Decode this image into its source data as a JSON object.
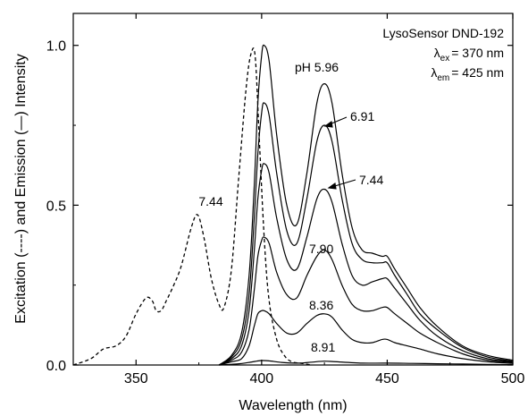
{
  "chart_data": {
    "type": "line",
    "xlabel": "Wavelength (nm)",
    "ylabel": "Excitation (----) and Emission (—) Intensity",
    "xlim": [
      325,
      500
    ],
    "ylim": [
      0,
      1.1
    ],
    "x_ticks": [
      "350",
      "400",
      "450",
      "500"
    ],
    "y_ticks": [
      "0.0",
      "0.5",
      "1.0"
    ],
    "legend": {
      "title": "LysoSensor DND-192",
      "ex_label": "ex",
      "ex_value": "= 370 nm",
      "em_label": "em",
      "em_value": "= 425 nm",
      "lambda": "λ"
    },
    "annotations": {
      "pH_prefix": "pH",
      "excitation": "7.44",
      "em_596": "5.96",
      "em_691": "6.91",
      "em_744": "7.44",
      "em_790": "7.90",
      "em_836": "8.36",
      "em_891": "8.91"
    },
    "excitation_series": {
      "name": "Excitation pH 7.44",
      "style": "dashed",
      "x": [
        325,
        332,
        337,
        342,
        346,
        350,
        354,
        356.5,
        358,
        360,
        362,
        365,
        368,
        372,
        374.5,
        377,
        380,
        383,
        385,
        388,
        391,
        394,
        396,
        397.5,
        399,
        401,
        403,
        406,
        409,
        412,
        416,
        420
      ],
      "y": [
        0.0,
        0.02,
        0.05,
        0.06,
        0.09,
        0.16,
        0.21,
        0.2,
        0.17,
        0.17,
        0.2,
        0.25,
        0.31,
        0.43,
        0.47,
        0.4,
        0.27,
        0.19,
        0.18,
        0.3,
        0.6,
        0.88,
        0.98,
        0.96,
        0.72,
        0.4,
        0.2,
        0.08,
        0.03,
        0.01,
        0.005,
        0.0
      ]
    },
    "emission_series": [
      {
        "name": "pH 5.96",
        "x": [
          383,
          388,
          392,
          395,
          397,
          398.5,
          400,
          401,
          403,
          406,
          410,
          414,
          418,
          422,
          425,
          428,
          432,
          436,
          440,
          444,
          448,
          450,
          453,
          458,
          463,
          470,
          480,
          490,
          500
        ],
        "y": [
          0.0,
          0.03,
          0.1,
          0.28,
          0.55,
          0.82,
          0.97,
          1.0,
          0.95,
          0.72,
          0.5,
          0.44,
          0.6,
          0.82,
          0.88,
          0.82,
          0.6,
          0.43,
          0.36,
          0.35,
          0.34,
          0.34,
          0.3,
          0.24,
          0.18,
          0.12,
          0.06,
          0.03,
          0.015
        ]
      },
      {
        "name": "pH 6.91",
        "x": [
          383,
          388,
          392,
          395,
          397,
          398.5,
          400,
          401,
          403,
          406,
          410,
          414,
          418,
          422,
          425,
          428,
          432,
          436,
          440,
          444,
          448,
          450,
          453,
          458,
          463,
          470,
          480,
          490,
          500
        ],
        "y": [
          0.0,
          0.025,
          0.08,
          0.22,
          0.45,
          0.66,
          0.79,
          0.82,
          0.78,
          0.6,
          0.42,
          0.38,
          0.52,
          0.7,
          0.75,
          0.7,
          0.52,
          0.38,
          0.33,
          0.32,
          0.32,
          0.32,
          0.28,
          0.22,
          0.16,
          0.11,
          0.055,
          0.025,
          0.012
        ]
      },
      {
        "name": "pH 7.44",
        "x": [
          383,
          388,
          392,
          395,
          397,
          398.5,
          400,
          401,
          403,
          406,
          410,
          414,
          418,
          422,
          425,
          428,
          432,
          436,
          440,
          444,
          448,
          450,
          453,
          458,
          463,
          470,
          480,
          490,
          500
        ],
        "y": [
          0.0,
          0.02,
          0.06,
          0.17,
          0.35,
          0.52,
          0.61,
          0.63,
          0.6,
          0.46,
          0.33,
          0.3,
          0.4,
          0.52,
          0.55,
          0.51,
          0.38,
          0.28,
          0.25,
          0.26,
          0.27,
          0.27,
          0.24,
          0.19,
          0.14,
          0.09,
          0.045,
          0.02,
          0.01
        ]
      },
      {
        "name": "pH 7.90",
        "x": [
          383,
          388,
          392,
          395,
          397,
          398.5,
          400,
          401,
          403,
          406,
          410,
          414,
          418,
          422,
          425,
          428,
          432,
          436,
          440,
          444,
          448,
          450,
          453,
          458,
          463,
          470,
          480,
          490,
          500
        ],
        "y": [
          0.0,
          0.015,
          0.04,
          0.11,
          0.23,
          0.34,
          0.39,
          0.4,
          0.38,
          0.29,
          0.22,
          0.21,
          0.28,
          0.34,
          0.36,
          0.33,
          0.25,
          0.19,
          0.17,
          0.17,
          0.18,
          0.18,
          0.16,
          0.13,
          0.1,
          0.07,
          0.035,
          0.015,
          0.008
        ]
      },
      {
        "name": "pH 8.36",
        "x": [
          383,
          388,
          392,
          395,
          397,
          398.5,
          400,
          401,
          403,
          406,
          410,
          414,
          418,
          422,
          425,
          428,
          432,
          436,
          440,
          444,
          448,
          450,
          453,
          458,
          463,
          470,
          480,
          490,
          500
        ],
        "y": [
          0.0,
          0.01,
          0.02,
          0.06,
          0.12,
          0.16,
          0.17,
          0.17,
          0.16,
          0.13,
          0.1,
          0.1,
          0.13,
          0.155,
          0.16,
          0.15,
          0.11,
          0.08,
          0.07,
          0.07,
          0.08,
          0.08,
          0.07,
          0.06,
          0.05,
          0.035,
          0.02,
          0.01,
          0.005
        ]
      },
      {
        "name": "pH 8.91",
        "x": [
          383,
          390,
          395,
          398,
          400,
          403,
          408,
          415,
          420,
          425,
          430,
          440,
          450,
          460,
          470,
          480,
          490,
          500
        ],
        "y": [
          0.0,
          0.003,
          0.008,
          0.012,
          0.014,
          0.013,
          0.008,
          0.006,
          0.009,
          0.012,
          0.01,
          0.006,
          0.006,
          0.005,
          0.004,
          0.003,
          0.002,
          0.001
        ]
      }
    ]
  }
}
